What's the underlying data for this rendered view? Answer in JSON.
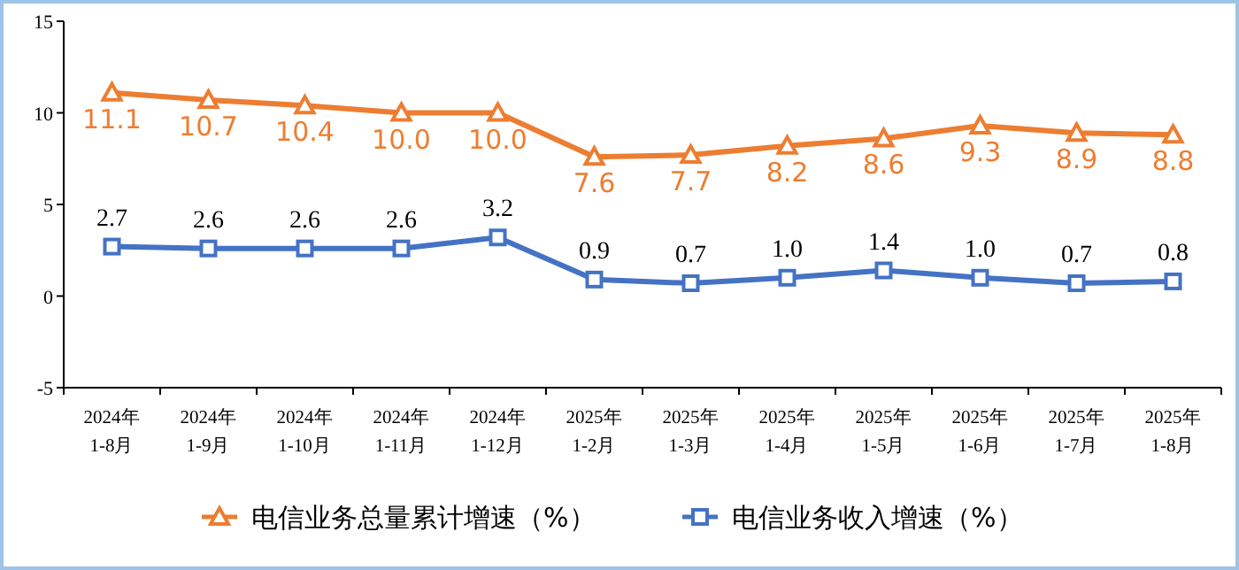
{
  "chart_data": {
    "type": "line",
    "categories": [
      "2024年\n1-8月",
      "2024年\n1-9月",
      "2024年\n1-10月",
      "2024年\n1-11月",
      "2024年\n1-12月",
      "2025年\n1-2月",
      "2025年\n1-3月",
      "2025年\n1-4月",
      "2025年\n1-5月",
      "2025年\n1-6月",
      "2025年\n1-7月",
      "2025年\n1-8月"
    ],
    "series": [
      {
        "name": "电信业务总量累计增速（%）",
        "color": "#ed7d31",
        "marker": "triangle",
        "values": [
          11.1,
          10.7,
          10.4,
          10.0,
          10.0,
          7.6,
          7.7,
          8.2,
          8.6,
          9.3,
          8.9,
          8.8
        ],
        "value_labels": [
          "11.1",
          "10.7",
          "10.4",
          "10.0",
          "10.0",
          "7.6",
          "7.7",
          "8.2",
          "8.6",
          "9.3",
          "8.9",
          "8.8"
        ]
      },
      {
        "name": "电信业务收入增速（%）",
        "color": "#4472c4",
        "marker": "square",
        "values": [
          2.7,
          2.6,
          2.6,
          2.6,
          3.2,
          0.9,
          0.7,
          1.0,
          1.4,
          1.0,
          0.7,
          0.8
        ],
        "value_labels": [
          "2.7",
          "2.6",
          "2.6",
          "2.6",
          "3.2",
          "0.9",
          "0.7",
          "1.0",
          "1.4",
          "1.0",
          "0.7",
          "0.8"
        ]
      }
    ],
    "ylim": [
      -5,
      15
    ],
    "yticks": [
      -5,
      0,
      5,
      10,
      15
    ],
    "grid": false,
    "legend": "bottom"
  }
}
